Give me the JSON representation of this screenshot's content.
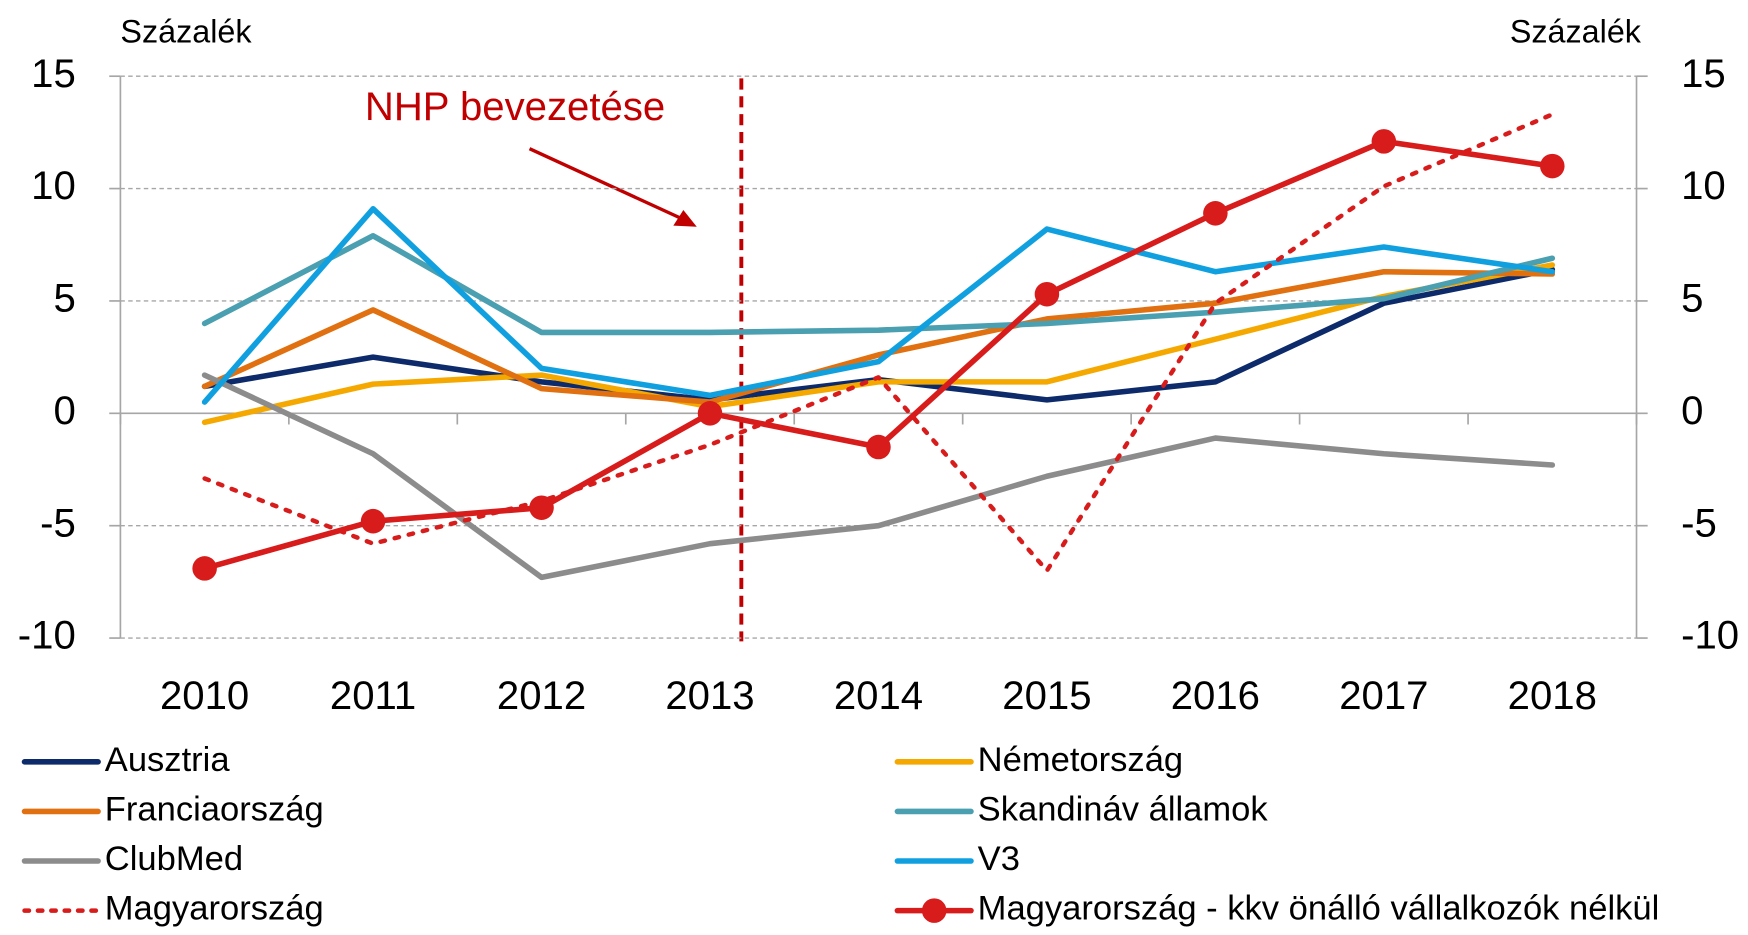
{
  "chart_data": {
    "type": "line",
    "y_label": "Százalék",
    "y2_label": "Százalék",
    "annotation": "NHP bevezetése",
    "categories": [
      "2010",
      "2011",
      "2012",
      "2013",
      "2014",
      "2015",
      "2016",
      "2017",
      "2018"
    ],
    "ylim": [
      -10,
      15
    ],
    "yticks": [
      -10,
      -5,
      0,
      5,
      10,
      15
    ],
    "y2lim": [
      -10,
      15
    ],
    "y2ticks": [
      -10,
      -5,
      0,
      5,
      10,
      15
    ],
    "grid": true,
    "series": [
      {
        "name": "Ausztria",
        "color": "#0d2b6b",
        "values": [
          1.2,
          2.5,
          1.4,
          0.6,
          1.5,
          0.6,
          1.4,
          4.9,
          6.4
        ]
      },
      {
        "name": "Németország",
        "color": "#f5a800",
        "values": [
          -0.4,
          1.3,
          1.7,
          0.3,
          1.4,
          1.4,
          3.3,
          5.2,
          6.6
        ]
      },
      {
        "name": "Franciaország",
        "color": "#e07010",
        "values": [
          1.2,
          4.6,
          1.1,
          0.5,
          2.6,
          4.2,
          4.9,
          6.3,
          6.2
        ]
      },
      {
        "name": "Skandináv államok",
        "color": "#4a9fb0",
        "values": [
          4.0,
          7.9,
          3.6,
          3.6,
          3.7,
          4.0,
          4.5,
          5.1,
          6.9
        ]
      },
      {
        "name": "ClubMed",
        "color": "#8c8c8c",
        "values": [
          1.7,
          -1.8,
          -7.3,
          -5.8,
          -5.0,
          -2.8,
          -1.1,
          -1.8,
          -2.3
        ]
      },
      {
        "name": "V3",
        "color": "#10a0e0",
        "values": [
          0.5,
          9.1,
          2.0,
          0.8,
          2.3,
          8.2,
          6.3,
          7.4,
          6.3
        ]
      },
      {
        "name": "Magyarország",
        "color": "#d81b1b",
        "style": "dotted",
        "values": [
          -2.9,
          -5.8,
          -3.9,
          -1.4,
          1.6,
          -7.0,
          4.9,
          10.1,
          13.3
        ]
      },
      {
        "name": "Magyarország - kkv önálló vállalkozók nélkül",
        "color": "#d81b1b",
        "marker": "circle",
        "values": [
          -6.9,
          -4.8,
          -4.2,
          0.0,
          -1.5,
          5.3,
          8.9,
          12.1,
          11.0
        ]
      }
    ]
  }
}
